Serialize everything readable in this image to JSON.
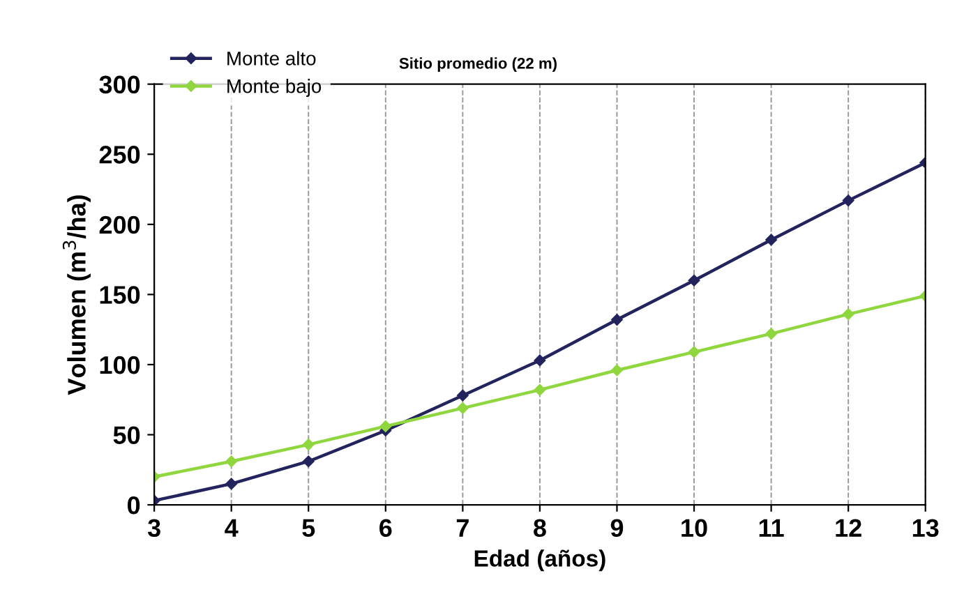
{
  "chart_data": {
    "type": "line",
    "title": "Sitio promedio (22 m)",
    "xlabel": "Edad (años)",
    "ylabel": "Volumen (m$^{3}$/ha)",
    "x": [
      3,
      4,
      5,
      6,
      7,
      8,
      9,
      10,
      11,
      12,
      13
    ],
    "series": [
      {
        "name": "Monte alto",
        "color": "#23235e",
        "values": [
          3,
          15,
          31,
          53,
          78,
          103,
          132,
          160,
          189,
          217,
          244
        ]
      },
      {
        "name": "Monte bajo",
        "color": "#8fd63f",
        "values": [
          20,
          31,
          43,
          56,
          69,
          82,
          96,
          109,
          122,
          136,
          149
        ]
      }
    ],
    "xlim": [
      3,
      13
    ],
    "xticks": [
      3,
      4,
      5,
      6,
      7,
      8,
      9,
      10,
      11,
      12,
      13
    ],
    "ylim": [
      0,
      300
    ],
    "yticks": [
      0,
      50,
      100,
      150,
      200,
      250,
      300
    ],
    "grid": "x",
    "legend": "top left",
    "marker": "diamond",
    "line_style": "solid"
  }
}
